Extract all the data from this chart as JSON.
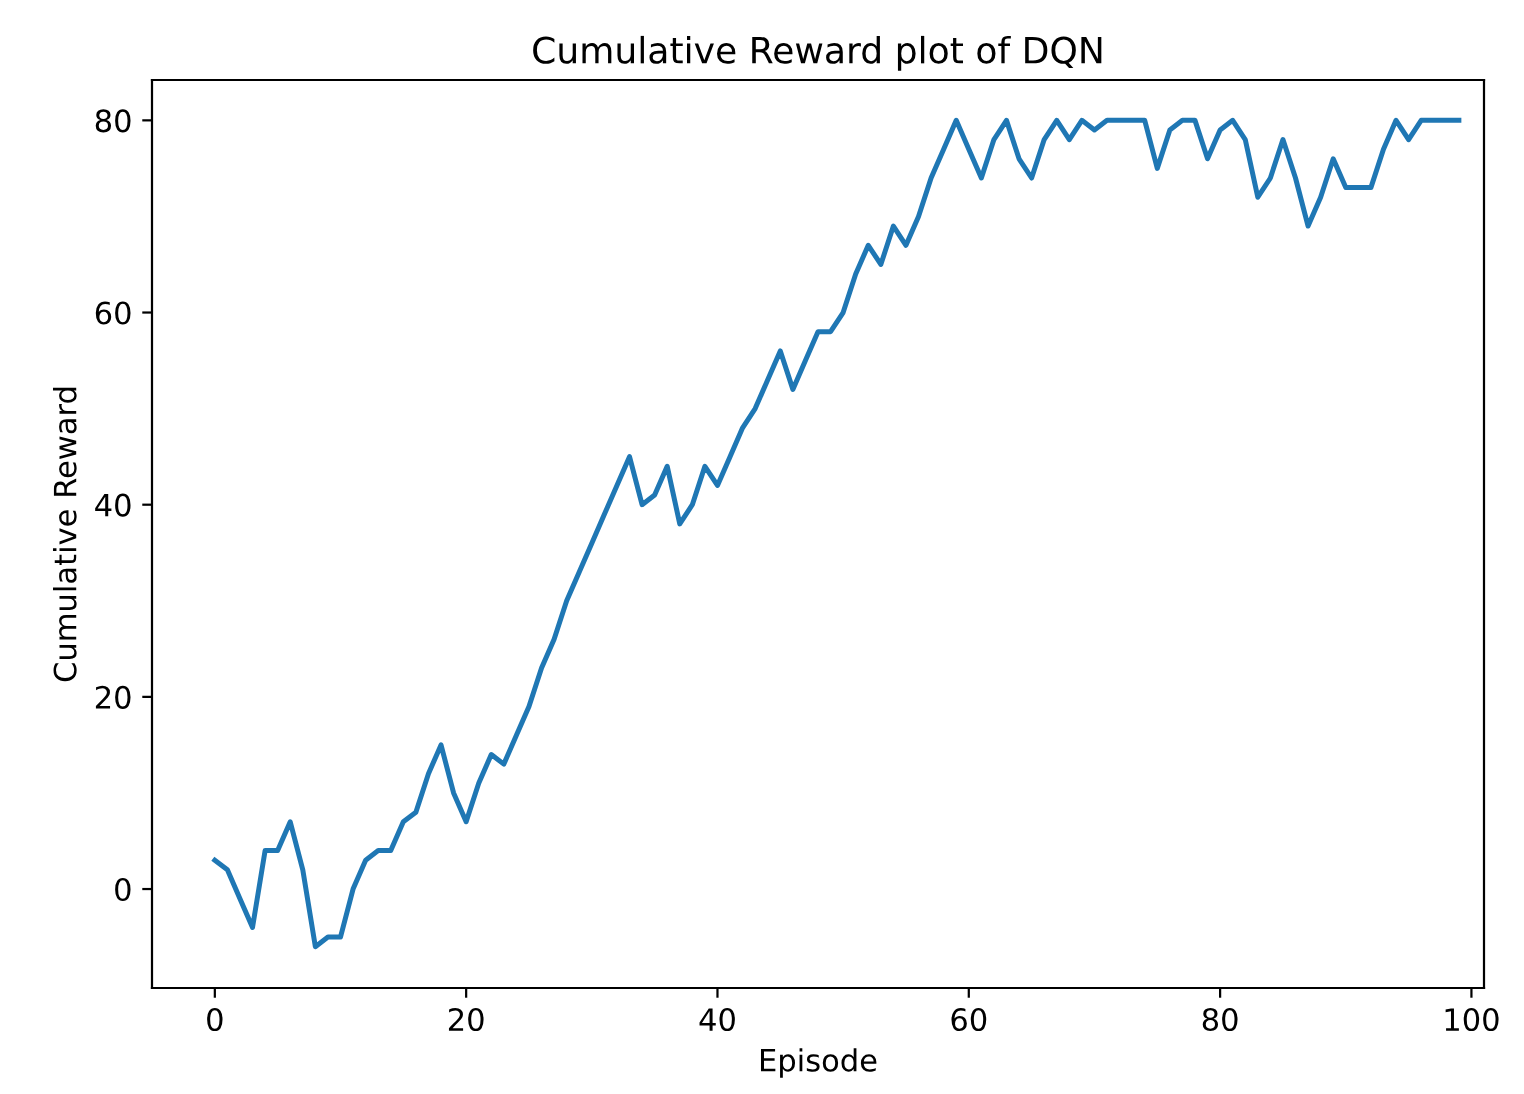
{
  "chart_data": {
    "type": "line",
    "title": "Cumulative Reward plot of DQN",
    "xlabel": "Episode",
    "ylabel": "Cumulative Reward",
    "x": [
      0,
      1,
      2,
      3,
      4,
      5,
      6,
      7,
      8,
      9,
      10,
      11,
      12,
      13,
      14,
      15,
      16,
      17,
      18,
      19,
      20,
      21,
      22,
      23,
      24,
      25,
      26,
      27,
      28,
      29,
      30,
      31,
      32,
      33,
      34,
      35,
      36,
      37,
      38,
      39,
      40,
      41,
      42,
      43,
      44,
      45,
      46,
      47,
      48,
      49,
      50,
      51,
      52,
      53,
      54,
      55,
      56,
      57,
      58,
      59,
      60,
      61,
      62,
      63,
      64,
      65,
      66,
      67,
      68,
      69,
      70,
      71,
      72,
      73,
      74,
      75,
      76,
      77,
      78,
      79,
      80,
      81,
      82,
      83,
      84,
      85,
      86,
      87,
      88,
      89,
      90,
      91,
      92,
      93,
      94,
      95,
      96,
      97,
      98,
      99
    ],
    "series": [
      {
        "color": "#1f77b4",
        "values": [
          3,
          2,
          -1,
          -4,
          4,
          4,
          7,
          2,
          -6,
          -5,
          -5,
          0,
          3,
          4,
          4,
          7,
          8,
          12,
          15,
          10,
          7,
          11,
          14,
          13,
          16,
          19,
          23,
          26,
          30,
          33,
          36,
          39,
          42,
          45,
          40,
          41,
          44,
          38,
          40,
          44,
          42,
          45,
          48,
          50,
          53,
          56,
          52,
          55,
          58,
          58,
          60,
          64,
          67,
          65,
          69,
          67,
          70,
          74,
          77,
          80,
          77,
          74,
          78,
          80,
          76,
          74,
          78,
          80,
          78,
          80,
          79,
          80,
          80,
          80,
          80,
          75,
          79,
          80,
          80,
          76,
          79,
          80,
          78,
          72,
          74,
          78,
          74,
          69,
          72,
          76,
          73,
          73,
          73,
          77,
          80,
          78,
          80,
          80,
          80,
          80
        ]
      }
    ],
    "xlim": [
      -5,
      101
    ],
    "ylim": [
      -10.3,
      84.2
    ],
    "xticks": [
      0,
      20,
      40,
      60,
      80,
      100
    ],
    "yticks": [
      0,
      20,
      40,
      60,
      80
    ],
    "grid": false,
    "legend": false,
    "marker": "none",
    "line_style": "solid"
  }
}
